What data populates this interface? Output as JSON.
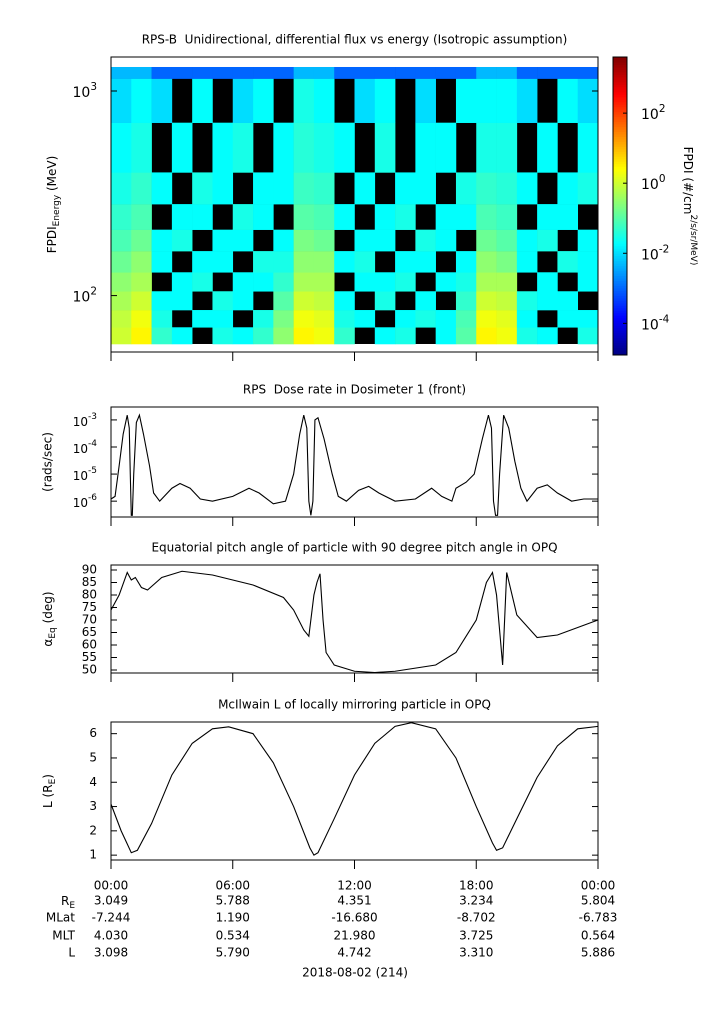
{
  "chart_data": [
    {
      "type": "heatmap",
      "title": "RPS-B  Unidirectional, differential flux vs energy (Isotropic assumption)",
      "ylabel": [
        {
          "text": "FPDI"
        },
        {
          "text": "Energy",
          "sub": true
        },
        {
          "text": " (MeV)"
        }
      ],
      "xlim": [
        0,
        24
      ],
      "xticks": [
        0,
        6,
        12,
        18,
        24
      ],
      "ylim": [
        53,
        1466
      ],
      "ylog": true,
      "yticks": [
        {
          "value": 100,
          "label": "10^2"
        },
        {
          "value": 1000,
          "label": "10^3"
        }
      ],
      "x_bins": [
        0,
        1,
        2,
        3,
        4,
        5,
        6,
        7,
        8,
        9,
        10,
        11,
        12,
        13,
        14,
        15,
        16,
        17,
        18,
        19,
        20,
        21,
        22,
        23,
        24
      ],
      "y_bins": [
        58,
        70,
        85,
        105,
        130,
        165,
        210,
        280,
        400,
        700,
        1150,
        1310
      ],
      "z": [
        [
          1,
          3,
          0.05,
          0.02,
          null,
          0.03,
          0.02,
          0.05,
          0.3,
          3,
          2,
          0.05,
          null,
          0.02,
          0.03,
          null,
          0.02,
          0.1,
          3,
          2,
          0.03,
          0.02,
          null,
          0.03
        ],
        [
          0.8,
          2,
          0.03,
          null,
          0.02,
          0.02,
          null,
          0.03,
          0.2,
          2,
          1.5,
          0.03,
          0.02,
          null,
          0.02,
          0.03,
          0.02,
          0.08,
          2,
          1.5,
          0.02,
          null,
          0.02,
          0.02
        ],
        [
          0.5,
          1,
          0.02,
          0.02,
          null,
          0.03,
          0.02,
          null,
          0.1,
          1,
          0.8,
          0.02,
          null,
          0.03,
          null,
          0.02,
          null,
          0.05,
          1,
          0.8,
          0.03,
          0.02,
          0.02,
          null
        ],
        [
          0.3,
          0.5,
          null,
          0.02,
          0.03,
          null,
          0.02,
          0.02,
          0.05,
          0.5,
          0.5,
          null,
          0.02,
          0.02,
          0.03,
          null,
          0.02,
          0.03,
          0.5,
          0.5,
          null,
          0.02,
          null,
          0.02
        ],
        [
          0.15,
          0.3,
          0.02,
          null,
          0.02,
          0.02,
          null,
          0.03,
          0.03,
          0.3,
          0.3,
          0.02,
          0.03,
          null,
          0.02,
          0.02,
          null,
          0.02,
          0.3,
          0.2,
          0.02,
          null,
          0.03,
          0.02
        ],
        [
          0.08,
          0.15,
          0.02,
          0.03,
          null,
          0.02,
          0.02,
          null,
          0.02,
          0.2,
          0.15,
          null,
          0.02,
          0.02,
          null,
          0.03,
          0.02,
          null,
          0.15,
          0.1,
          0.02,
          0.03,
          null,
          0.02
        ],
        [
          0.05,
          0.08,
          null,
          0.02,
          0.02,
          null,
          0.03,
          0.02,
          null,
          0.1,
          0.08,
          0.02,
          null,
          0.02,
          0.03,
          null,
          0.02,
          0.02,
          0.08,
          0.06,
          null,
          0.02,
          0.02,
          null
        ],
        [
          0.03,
          0.05,
          0.02,
          null,
          0.03,
          0.02,
          null,
          0.02,
          0.02,
          0.06,
          0.05,
          null,
          0.02,
          null,
          0.02,
          0.02,
          null,
          0.03,
          0.05,
          0.04,
          0.02,
          null,
          0.02,
          0.03
        ],
        [
          0.02,
          0.03,
          null,
          0.02,
          null,
          0.02,
          0.03,
          null,
          0.02,
          0.04,
          0.03,
          0.02,
          null,
          0.03,
          null,
          0.02,
          0.02,
          null,
          0.03,
          0.03,
          null,
          0.02,
          null,
          0.02
        ],
        [
          0.01,
          0.02,
          0.01,
          null,
          0.02,
          null,
          0.01,
          0.02,
          null,
          0.03,
          0.02,
          null,
          0.01,
          0.02,
          null,
          0.01,
          null,
          0.02,
          0.02,
          0.02,
          0.01,
          null,
          0.02,
          0.01
        ],
        [
          0.005,
          0.005,
          0.001,
          0.001,
          0.001,
          0.001,
          0.001,
          0.001,
          0.001,
          0.005,
          0.005,
          0.001,
          0.001,
          0.001,
          0.001,
          0.001,
          0.001,
          0.001,
          0.005,
          0.005,
          0.001,
          0.001,
          0.001,
          0.001
        ]
      ],
      "colorbar": {
        "label": "FPDI (#/cm^2/s/sr/MeV)",
        "zlim": [
          1.25e-05,
          4000
        ],
        "log": true,
        "ticks": [
          {
            "value": 0.0001,
            "label": "10^-4"
          },
          {
            "value": 0.01,
            "label": "10^-2"
          },
          {
            "value": 1,
            "label": "10^0"
          },
          {
            "value": 100,
            "label": "10^2"
          }
        ]
      }
    },
    {
      "type": "line",
      "title": "RPS  Dose rate in Dosimeter 1 (front)",
      "ylabel": "(rads/sec)",
      "color": "#000000",
      "xlim": [
        0,
        24
      ],
      "xticks": [
        0,
        6,
        12,
        18,
        24
      ],
      "ylim": [
        2.6e-07,
        0.003
      ],
      "ylog": true,
      "yticks": [
        {
          "value": 1e-06,
          "label": "10^-6"
        },
        {
          "value": 1e-05,
          "label": "10^-5"
        },
        {
          "value": 0.0001,
          "label": "10^-4"
        },
        {
          "value": 0.001,
          "label": "10^-3"
        }
      ],
      "x": [
        0,
        0.2,
        0.4,
        0.6,
        0.8,
        0.9,
        0.95,
        1.0,
        1.05,
        1.12,
        1.25,
        1.4,
        1.6,
        1.9,
        2.1,
        2.4,
        3.0,
        3.4,
        3.9,
        4.4,
        5.0,
        6.0,
        6.8,
        7.3,
        8.0,
        8.6,
        9.0,
        9.3,
        9.5,
        9.65,
        9.75,
        9.85,
        9.95,
        10.05,
        10.2,
        10.5,
        10.9,
        11.2,
        11.6,
        12.2,
        12.7,
        13.2,
        14.0,
        15.0,
        15.8,
        16.3,
        16.8,
        17.0,
        17.5,
        17.9,
        18.3,
        18.6,
        18.75,
        18.85,
        18.95,
        19.05,
        19.15,
        19.35,
        19.6,
        19.9,
        20.2,
        20.5,
        21.0,
        21.5,
        22.0,
        22.7,
        23.3,
        24
      ],
      "values": [
        1.2e-06,
        1.5e-06,
        2e-05,
        0.0003,
        0.0015,
        0.0005,
        1e-05,
        3e-07,
        3e-07,
        1e-05,
        0.0008,
        0.0015,
        0.0003,
        2e-05,
        2e-06,
        1e-06,
        3e-06,
        4.5e-06,
        3e-06,
        1.2e-06,
        1e-06,
        1.5e-06,
        3e-06,
        2e-06,
        8e-07,
        1e-06,
        1e-05,
        0.0003,
        0.0015,
        0.0005,
        1e-06,
        3e-07,
        1e-06,
        0.001,
        0.0012,
        0.0002,
        1e-05,
        1.5e-06,
        1e-06,
        2.5e-06,
        3.5e-06,
        2e-06,
        1e-06,
        1.2e-06,
        3e-06,
        1.5e-06,
        1e-06,
        3e-06,
        5e-06,
        1e-05,
        0.0002,
        0.0015,
        0.0005,
        1e-06,
        3e-07,
        3e-07,
        1e-05,
        0.0015,
        0.0005,
        3e-05,
        3e-06,
        1e-06,
        3e-06,
        4e-06,
        2e-06,
        1e-06,
        1.2e-06,
        1.2e-06
      ]
    },
    {
      "type": "line",
      "title": "Equatorial pitch angle of particle with 90 degree pitch angle in OPQ",
      "ylabel": [
        {
          "text": "α"
        },
        {
          "text": "Eq",
          "sub": true
        },
        {
          "text": " (deg)"
        }
      ],
      "color": "#000000",
      "xlim": [
        0,
        24
      ],
      "xticks": [
        0,
        6,
        12,
        18,
        24
      ],
      "ylim": [
        48.8,
        92
      ],
      "yticks": [
        50,
        55,
        60,
        65,
        70,
        75,
        80,
        85,
        90
      ],
      "x": [
        0,
        0.4,
        0.8,
        1.0,
        1.2,
        1.5,
        1.8,
        2.5,
        3.5,
        5,
        7,
        8.5,
        9,
        9.5,
        9.75,
        10.0,
        10.15,
        10.3,
        10.45,
        10.6,
        11,
        12,
        13,
        14,
        16,
        17,
        18,
        18.5,
        18.8,
        19.0,
        19.3,
        19.5,
        20,
        21,
        22,
        23,
        24
      ],
      "values": [
        74,
        80,
        89,
        86,
        87,
        83,
        82,
        87,
        89.5,
        88,
        84,
        79,
        74,
        66,
        63.5,
        80,
        85,
        88.5,
        70,
        57,
        52,
        49.5,
        49,
        49.5,
        52,
        57,
        70,
        85,
        89,
        80,
        52,
        89,
        72,
        63,
        64,
        67,
        70
      ]
    },
    {
      "type": "line",
      "title": "McIlwain L of locally mirroring particle in OPQ",
      "ylabel": [
        {
          "text": "L (R"
        },
        {
          "text": "E",
          "sub": true
        },
        {
          "text": ")"
        }
      ],
      "color": "#000000",
      "xlim": [
        0,
        24
      ],
      "xticks": [
        {
          "value": 0,
          "label": "00:00"
        },
        {
          "value": 6,
          "label": "06:00"
        },
        {
          "value": 12,
          "label": "12:00"
        },
        {
          "value": 18,
          "label": "18:00"
        },
        {
          "value": 24,
          "label": "00:00"
        }
      ],
      "ylim": [
        0.8,
        6.48
      ],
      "yticks": [
        1,
        2,
        3,
        4,
        5,
        6
      ],
      "x": [
        0,
        0.5,
        1,
        1.3,
        2,
        3,
        4,
        5,
        5.8,
        7,
        8,
        9,
        9.8,
        10,
        10.2,
        11,
        12,
        13,
        14,
        14.8,
        16,
        17,
        18,
        18.8,
        19,
        19.3,
        20,
        21,
        22,
        23,
        24
      ],
      "values": [
        3.1,
        2,
        1.1,
        1.2,
        2.3,
        4.3,
        5.6,
        6.2,
        6.28,
        6.0,
        4.8,
        3,
        1.3,
        1.0,
        1.1,
        2.5,
        4.3,
        5.6,
        6.3,
        6.45,
        6.2,
        5,
        3,
        1.5,
        1.2,
        1.3,
        2.5,
        4.2,
        5.5,
        6.2,
        6.3
      ]
    }
  ],
  "ephemeris": {
    "rows": [
      {
        "label": [
          {
            "text": "R"
          },
          {
            "text": "E",
            "sub": true
          }
        ],
        "values": [
          "3.049",
          "5.788",
          "4.351",
          "3.234",
          "5.804"
        ]
      },
      {
        "label": "MLat",
        "values": [
          "-7.244",
          "1.190",
          "-16.680",
          "-8.702",
          "-6.783"
        ]
      },
      {
        "label": "MLT",
        "values": [
          "4.030",
          "0.534",
          "21.980",
          "3.725",
          "0.564"
        ]
      },
      {
        "label": "L",
        "values": [
          "3.098",
          "5.790",
          "4.742",
          "3.310",
          "5.886"
        ]
      }
    ],
    "date": "2018-08-02 (214)"
  }
}
